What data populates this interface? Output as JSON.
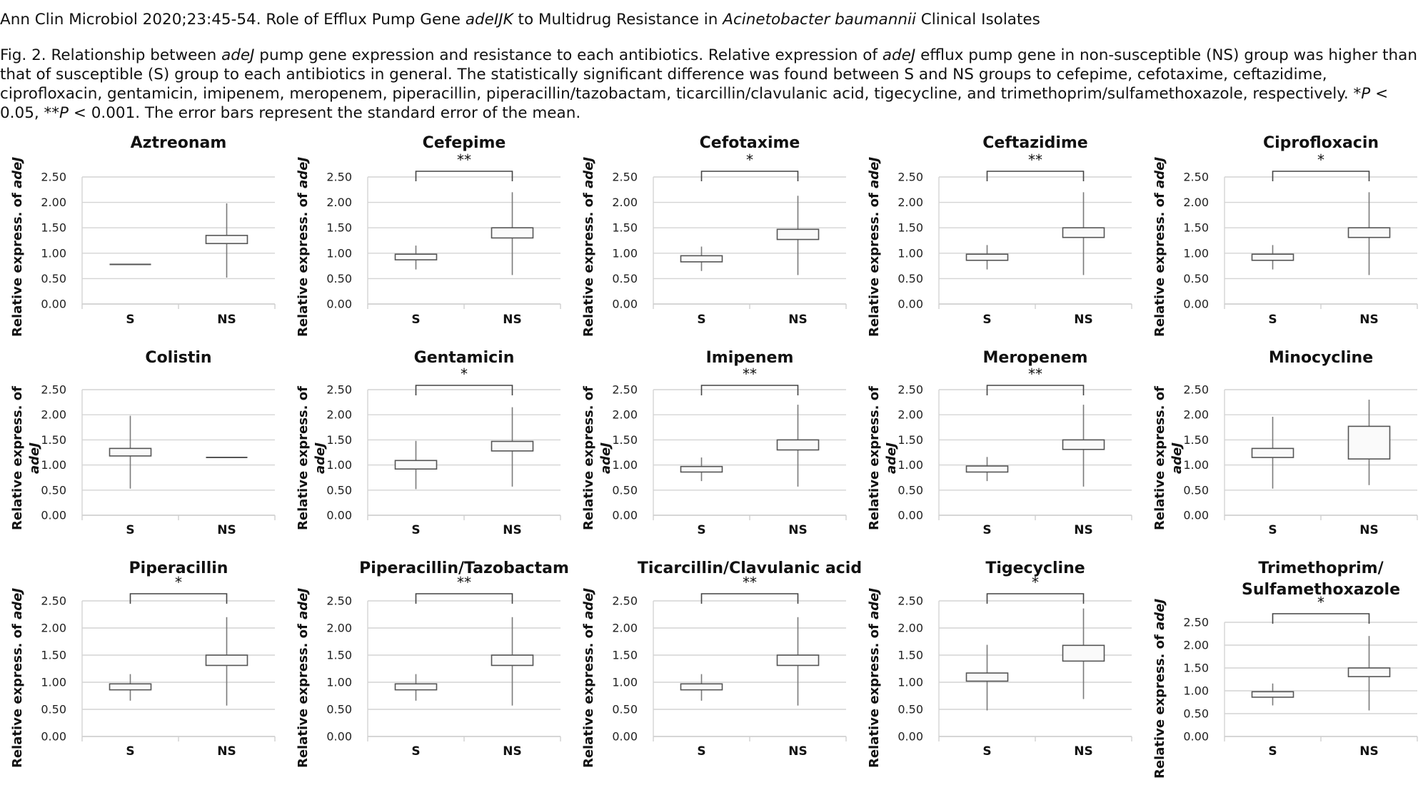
{
  "header": {
    "citation": [
      {
        "t": "Ann Clin Microbiol 2020;23:45-54. Role of Efflux Pump Gene "
      },
      {
        "t": "adeIJK",
        "i": true
      },
      {
        "t": " to Multidrug Resistance in "
      },
      {
        "t": "Acinetobacter baumannii",
        "i": true
      },
      {
        "t": " Clinical Isolates"
      }
    ],
    "caption": [
      {
        "t": "Fig. 2. Relationship between "
      },
      {
        "t": "adeJ",
        "i": true
      },
      {
        "t": " pump gene expression and resistance to each antibiotics. Relative expression of "
      },
      {
        "t": "adeJ",
        "i": true
      },
      {
        "t": " efflux pump gene in non-susceptible (NS) group was higher than that of susceptible (S) group to each antibiotics in general. The statistically significant difference was found between S and NS groups to cefepime, cefotaxime, ceftazidime, ciprofloxacin, gentamicin, imipenem, meropenem, piperacillin, piperacillin/tazobactam, ticarcillin/clavulanic acid, tigecycline, and trimethoprim/sulfamethoxazole, respectively. *"
      },
      {
        "t": "P",
        "i": true
      },
      {
        "t": " < 0.05, **"
      },
      {
        "t": "P",
        "i": true
      },
      {
        "t": " < 0.001. The error bars represent the standard error of the mean."
      }
    ]
  },
  "chart_data": [
    {
      "type": "box",
      "title": "Aztreonam",
      "ylabel": "Relative express. of adeJ",
      "ylim": [
        0,
        2.5
      ],
      "yticks": [
        "0.00",
        "0.50",
        "1.00",
        "1.50",
        "2.00",
        "2.50"
      ],
      "categories": [
        "S",
        "NS"
      ],
      "significance": "",
      "boxes": [
        {
          "min": 0.78,
          "q1": 0.78,
          "q3": 0.78,
          "max": 0.78
        },
        {
          "min": 0.52,
          "q1": 1.19,
          "q3": 1.35,
          "max": 1.98
        }
      ]
    },
    {
      "type": "box",
      "title": "Cefepime",
      "ylabel": "Relative express. of adeJ",
      "ylim": [
        0,
        2.5
      ],
      "yticks": [
        "0.00",
        "0.50",
        "1.00",
        "1.50",
        "2.00",
        "2.50"
      ],
      "categories": [
        "S",
        "NS"
      ],
      "significance": "**",
      "boxes": [
        {
          "min": 0.68,
          "q1": 0.87,
          "q3": 0.98,
          "max": 1.15
        },
        {
          "min": 0.57,
          "q1": 1.3,
          "q3": 1.5,
          "max": 2.2
        }
      ]
    },
    {
      "type": "box",
      "title": "Cefotaxime",
      "ylabel": "Relative express. of adeJ",
      "ylim": [
        0,
        2.5
      ],
      "yticks": [
        "0.00",
        "0.50",
        "1.00",
        "1.50",
        "2.00",
        "2.50"
      ],
      "categories": [
        "S",
        "NS"
      ],
      "significance": "*",
      "boxes": [
        {
          "min": 0.65,
          "q1": 0.83,
          "q3": 0.95,
          "max": 1.13
        },
        {
          "min": 0.57,
          "q1": 1.27,
          "q3": 1.47,
          "max": 2.13
        }
      ]
    },
    {
      "type": "box",
      "title": "Ceftazidime",
      "ylabel": "Relative express. of adeJ",
      "ylim": [
        0,
        2.5
      ],
      "yticks": [
        "0.00",
        "0.50",
        "1.00",
        "1.50",
        "2.00",
        "2.50"
      ],
      "categories": [
        "S",
        "NS"
      ],
      "significance": "**",
      "boxes": [
        {
          "min": 0.68,
          "q1": 0.86,
          "q3": 0.98,
          "max": 1.16
        },
        {
          "min": 0.57,
          "q1": 1.31,
          "q3": 1.5,
          "max": 2.2
        }
      ]
    },
    {
      "type": "box",
      "title": "Ciprofloxacin",
      "ylabel": "Relative express. of adeJ",
      "ylim": [
        0,
        2.5
      ],
      "yticks": [
        "0.00",
        "0.50",
        "1.00",
        "1.50",
        "2.00",
        "2.50"
      ],
      "categories": [
        "S",
        "NS"
      ],
      "significance": "*",
      "boxes": [
        {
          "min": 0.68,
          "q1": 0.86,
          "q3": 0.98,
          "max": 1.16
        },
        {
          "min": 0.57,
          "q1": 1.31,
          "q3": 1.5,
          "max": 2.2
        }
      ]
    },
    {
      "type": "box",
      "title": "Colistin",
      "ylabel": "Relative express. of adeJ",
      "ylim": [
        0,
        2.5
      ],
      "yticks": [
        "0.00",
        "0.50",
        "1.00",
        "1.50",
        "2.00",
        "2.50"
      ],
      "categories": [
        "S",
        "NS"
      ],
      "significance": "",
      "boxes": [
        {
          "min": 0.53,
          "q1": 1.18,
          "q3": 1.33,
          "max": 1.98
        },
        {
          "min": 1.15,
          "q1": 1.15,
          "q3": 1.15,
          "max": 1.15
        }
      ]
    },
    {
      "type": "box",
      "title": "Gentamicin",
      "ylabel": "Relative express. of adeJ",
      "ylim": [
        0,
        2.5
      ],
      "yticks": [
        "0.00",
        "0.50",
        "1.00",
        "1.50",
        "2.00",
        "2.50"
      ],
      "categories": [
        "S",
        "NS"
      ],
      "significance": "*",
      "boxes": [
        {
          "min": 0.52,
          "q1": 0.92,
          "q3": 1.09,
          "max": 1.48
        },
        {
          "min": 0.57,
          "q1": 1.28,
          "q3": 1.47,
          "max": 2.15
        }
      ]
    },
    {
      "type": "box",
      "title": "Imipenem",
      "ylabel": "Relative express. of adeJ",
      "ylim": [
        0,
        2.5
      ],
      "yticks": [
        "0.00",
        "0.50",
        "1.00",
        "1.50",
        "2.00",
        "2.50"
      ],
      "categories": [
        "S",
        "NS"
      ],
      "significance": "**",
      "boxes": [
        {
          "min": 0.68,
          "q1": 0.86,
          "q3": 0.97,
          "max": 1.15
        },
        {
          "min": 0.57,
          "q1": 1.3,
          "q3": 1.5,
          "max": 2.2
        }
      ]
    },
    {
      "type": "box",
      "title": "Meropenem",
      "ylabel": "Relative express. of adeJ",
      "ylim": [
        0,
        2.5
      ],
      "yticks": [
        "0.00",
        "0.50",
        "1.00",
        "1.50",
        "2.00",
        "2.50"
      ],
      "categories": [
        "S",
        "NS"
      ],
      "significance": "**",
      "boxes": [
        {
          "min": 0.68,
          "q1": 0.86,
          "q3": 0.98,
          "max": 1.16
        },
        {
          "min": 0.57,
          "q1": 1.31,
          "q3": 1.5,
          "max": 2.2
        }
      ]
    },
    {
      "type": "box",
      "title": "Minocycline",
      "ylabel": "Relative express. of adeJ",
      "ylim": [
        0,
        2.5
      ],
      "yticks": [
        "0.00",
        "0.50",
        "1.00",
        "1.50",
        "2.00",
        "2.50"
      ],
      "categories": [
        "S",
        "NS"
      ],
      "significance": "",
      "boxes": [
        {
          "min": 0.53,
          "q1": 1.15,
          "q3": 1.33,
          "max": 1.96
        },
        {
          "min": 0.6,
          "q1": 1.12,
          "q3": 1.77,
          "max": 2.3
        }
      ]
    },
    {
      "type": "box",
      "title": "Piperacillin",
      "ylabel": "Relative express. of adeJ",
      "ylim": [
        0,
        2.5
      ],
      "yticks": [
        "0.00",
        "0.50",
        "1.00",
        "1.50",
        "2.00",
        "2.50"
      ],
      "categories": [
        "S",
        "NS"
      ],
      "significance": "*",
      "boxes": [
        {
          "min": 0.66,
          "q1": 0.86,
          "q3": 0.97,
          "max": 1.15
        },
        {
          "min": 0.57,
          "q1": 1.31,
          "q3": 1.5,
          "max": 2.2
        }
      ]
    },
    {
      "type": "box",
      "title": "Piperacillin/Tazobactam",
      "ylabel": "Relative express. of adeJ",
      "ylim": [
        0,
        2.5
      ],
      "yticks": [
        "0.00",
        "0.50",
        "1.00",
        "1.50",
        "2.00",
        "2.50"
      ],
      "categories": [
        "S",
        "NS"
      ],
      "significance": "**",
      "boxes": [
        {
          "min": 0.66,
          "q1": 0.86,
          "q3": 0.97,
          "max": 1.15
        },
        {
          "min": 0.57,
          "q1": 1.31,
          "q3": 1.5,
          "max": 2.2
        }
      ]
    },
    {
      "type": "box",
      "title": "Ticarcillin/Clavulanic acid",
      "ylabel": "Relative express. of adeJ",
      "ylim": [
        0,
        2.5
      ],
      "yticks": [
        "0.00",
        "0.50",
        "1.00",
        "1.50",
        "2.00",
        "2.50"
      ],
      "categories": [
        "S",
        "NS"
      ],
      "significance": "**",
      "boxes": [
        {
          "min": 0.66,
          "q1": 0.86,
          "q3": 0.97,
          "max": 1.15
        },
        {
          "min": 0.57,
          "q1": 1.31,
          "q3": 1.5,
          "max": 2.2
        }
      ]
    },
    {
      "type": "box",
      "title": "Tigecycline",
      "ylabel": "Relative express. of adeJ",
      "ylim": [
        0,
        2.5
      ],
      "yticks": [
        "0.00",
        "0.50",
        "1.00",
        "1.50",
        "2.00",
        "2.50"
      ],
      "categories": [
        "S",
        "NS"
      ],
      "significance": "*",
      "boxes": [
        {
          "min": 0.48,
          "q1": 1.02,
          "q3": 1.17,
          "max": 1.69
        },
        {
          "min": 0.69,
          "q1": 1.39,
          "q3": 1.68,
          "max": 2.36
        }
      ]
    },
    {
      "type": "box",
      "title": "Trimethoprim/ Sulfamethoxazole",
      "ylabel": "Relative express. of adeJ",
      "ylim": [
        0,
        2.5
      ],
      "yticks": [
        "0.00",
        "0.50",
        "1.00",
        "1.50",
        "2.00",
        "2.50"
      ],
      "categories": [
        "S",
        "NS"
      ],
      "significance": "*",
      "boxes": [
        {
          "min": 0.68,
          "q1": 0.86,
          "q3": 0.98,
          "max": 1.16
        },
        {
          "min": 0.57,
          "q1": 1.31,
          "q3": 1.5,
          "max": 2.2
        }
      ]
    }
  ]
}
